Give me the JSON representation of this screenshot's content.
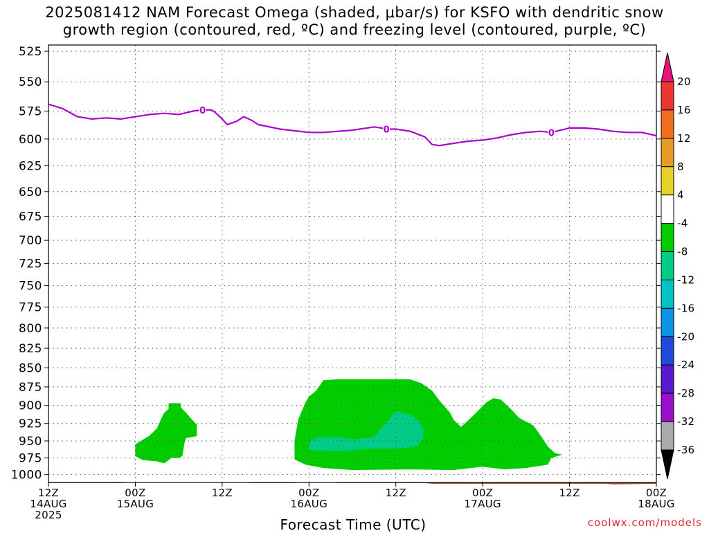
{
  "title": {
    "line1": "2025081412 NAM Forecast Omega (shaded, μbar/s) for KSFO with dendritic snow",
    "line2": "growth region (contoured, red, ºC) and freezing level (contoured, purple, ºC)"
  },
  "credit": "coolwx.com/models",
  "chart_data": {
    "type": "time-height cross section",
    "xlabel": "Forecast Time (UTC)",
    "ylabel": "",
    "x_ticks": [
      {
        "h": 0,
        "lines": [
          "12Z",
          "14AUG",
          "2025"
        ]
      },
      {
        "h": 12,
        "lines": [
          "00Z",
          "15AUG"
        ]
      },
      {
        "h": 24,
        "lines": [
          "12Z"
        ]
      },
      {
        "h": 36,
        "lines": [
          "00Z",
          "16AUG"
        ]
      },
      {
        "h": 48,
        "lines": [
          "12Z"
        ]
      },
      {
        "h": 60,
        "lines": [
          "00Z",
          "17AUG"
        ]
      },
      {
        "h": 72,
        "lines": [
          "12Z"
        ]
      },
      {
        "h": 84,
        "lines": [
          "00Z",
          "18AUG"
        ]
      }
    ],
    "xlim_hours": [
      0,
      84
    ],
    "y_scale": "log-pressure",
    "ylim_hpa": [
      1012,
      520
    ],
    "y_ticks": [
      "525",
      "550",
      "575",
      "600",
      "625",
      "650",
      "675",
      "700",
      "725",
      "750",
      "775",
      "800",
      "825",
      "850",
      "875",
      "900",
      "925",
      "950",
      "975",
      "1000"
    ],
    "grid": "dotted",
    "colorbar": {
      "labels": [
        "20",
        "16",
        "12",
        "8",
        "4",
        "-4",
        "-8",
        "-12",
        "-16",
        "-20",
        "-24",
        "-28",
        "-32",
        "-36"
      ],
      "bins": [
        {
          "from": 20,
          "to": 999,
          "color": "#e8127a"
        },
        {
          "from": 16,
          "to": 20,
          "color": "#ee3333"
        },
        {
          "from": 12,
          "to": 16,
          "color": "#ee6e1e"
        },
        {
          "from": 8,
          "to": 12,
          "color": "#e59b24"
        },
        {
          "from": 4,
          "to": 8,
          "color": "#e5d225"
        },
        {
          "from": -4,
          "to": 4,
          "color": "#ffffff"
        },
        {
          "from": -8,
          "to": -4,
          "color": "#00cc00"
        },
        {
          "from": -12,
          "to": -8,
          "color": "#00cc88"
        },
        {
          "from": -16,
          "to": -12,
          "color": "#00c3c3"
        },
        {
          "from": -20,
          "to": -16,
          "color": "#0a96e8"
        },
        {
          "from": -24,
          "to": -20,
          "color": "#2149e0"
        },
        {
          "from": -28,
          "to": -24,
          "color": "#5a18d0"
        },
        {
          "from": -32,
          "to": -28,
          "color": "#9910cc"
        },
        {
          "from": -36,
          "to": -32,
          "color": "#aaaaaa"
        },
        {
          "from": -999,
          "to": -36,
          "color": "#000000"
        }
      ]
    },
    "freezing_level": {
      "color": "#aa00cc",
      "label": "0",
      "label_at_hours": [
        21.3,
        46.7,
        69.5
      ],
      "points": [
        [
          0,
          569
        ],
        [
          2,
          573
        ],
        [
          4,
          580
        ],
        [
          6,
          582
        ],
        [
          8,
          581
        ],
        [
          10,
          582
        ],
        [
          12,
          580
        ],
        [
          14,
          578
        ],
        [
          16,
          577
        ],
        [
          18,
          578
        ],
        [
          20,
          575
        ],
        [
          21.3,
          574
        ],
        [
          22.5,
          574
        ],
        [
          23,
          576
        ],
        [
          24,
          582
        ],
        [
          24.7,
          587
        ],
        [
          26,
          584
        ],
        [
          27,
          580
        ],
        [
          28,
          583
        ],
        [
          29,
          587
        ],
        [
          32,
          591
        ],
        [
          36,
          594
        ],
        [
          38,
          594
        ],
        [
          40,
          593
        ],
        [
          42,
          592
        ],
        [
          44,
          590
        ],
        [
          45,
          589
        ],
        [
          46,
          590
        ],
        [
          46.7,
          591
        ],
        [
          48,
          591
        ],
        [
          50,
          593
        ],
        [
          52,
          598
        ],
        [
          53,
          605
        ],
        [
          54,
          606
        ],
        [
          56,
          604
        ],
        [
          58,
          602
        ],
        [
          60,
          601
        ],
        [
          62,
          599
        ],
        [
          64,
          596
        ],
        [
          66,
          594
        ],
        [
          68,
          593
        ],
        [
          69.5,
          594
        ],
        [
          72,
          590
        ],
        [
          74,
          590
        ],
        [
          76,
          591
        ],
        [
          78,
          593
        ],
        [
          80,
          594
        ],
        [
          82,
          594
        ],
        [
          84,
          597
        ]
      ]
    },
    "surface": {
      "color": "#a0522d",
      "points": [
        [
          0,
          1013
        ],
        [
          10,
          1013
        ],
        [
          11,
          1012
        ],
        [
          27,
          1012
        ],
        [
          28,
          1013
        ],
        [
          34,
          1013
        ],
        [
          35,
          1012
        ],
        [
          39,
          1012
        ],
        [
          40,
          1013
        ],
        [
          52,
          1013
        ],
        [
          53,
          1014
        ],
        [
          77,
          1014
        ],
        [
          78,
          1015
        ],
        [
          84,
          1014
        ]
      ]
    },
    "omega_regions": [
      {
        "level": "-4 to -8",
        "color": "#00cc00",
        "points": [
          [
            12,
            955
          ],
          [
            14,
            942
          ],
          [
            15,
            932
          ],
          [
            15.5,
            920
          ],
          [
            16,
            910
          ],
          [
            16.6,
            905
          ],
          [
            16.6,
            897
          ],
          [
            18.3,
            897
          ],
          [
            18.3,
            903
          ],
          [
            19,
            910
          ],
          [
            19.7,
            918
          ],
          [
            20.5,
            927
          ],
          [
            20.5,
            943
          ],
          [
            19,
            946
          ],
          [
            18.8,
            953
          ],
          [
            18.5,
            972
          ],
          [
            18,
            975
          ],
          [
            17,
            975
          ],
          [
            16,
            983
          ],
          [
            15,
            980
          ],
          [
            13,
            978
          ],
          [
            12,
            972
          ]
        ]
      },
      {
        "level": "-4 to -8",
        "color": "#00cc00",
        "points": [
          [
            34,
            950
          ],
          [
            34.5,
            920
          ],
          [
            35.5,
            896
          ],
          [
            36,
            888
          ],
          [
            37,
            880
          ],
          [
            38,
            866
          ],
          [
            40,
            865
          ],
          [
            50,
            865
          ],
          [
            51.5,
            870
          ],
          [
            53,
            880
          ],
          [
            54,
            893
          ],
          [
            55.5,
            910
          ],
          [
            56,
            920
          ],
          [
            57,
            930
          ],
          [
            58.5,
            916
          ],
          [
            59.5,
            906
          ],
          [
            60.5,
            896
          ],
          [
            61.5,
            890
          ],
          [
            62.5,
            892
          ],
          [
            64,
            906
          ],
          [
            65,
            917
          ],
          [
            67,
            928
          ],
          [
            68,
            942
          ],
          [
            69,
            958
          ],
          [
            70,
            968
          ],
          [
            71,
            970
          ],
          [
            69.5,
            975
          ],
          [
            69,
            985
          ],
          [
            66,
            990
          ],
          [
            63,
            992
          ],
          [
            60,
            988
          ],
          [
            56,
            993
          ],
          [
            50,
            992
          ],
          [
            42,
            993
          ],
          [
            38,
            990
          ],
          [
            35.5,
            985
          ],
          [
            34,
            977
          ]
        ]
      },
      {
        "level": "-8 to -12",
        "color": "#00cc88",
        "points": [
          [
            36,
            952
          ],
          [
            37,
            945
          ],
          [
            40,
            944
          ],
          [
            42,
            948
          ],
          [
            45,
            944
          ],
          [
            46,
            932
          ],
          [
            47,
            920
          ],
          [
            48,
            908
          ],
          [
            50,
            913
          ],
          [
            51,
            920
          ],
          [
            51.8,
            932
          ],
          [
            51.8,
            945
          ],
          [
            51,
            957
          ],
          [
            49,
            961
          ],
          [
            45,
            961
          ],
          [
            40,
            965
          ],
          [
            36,
            963
          ]
        ]
      }
    ]
  }
}
